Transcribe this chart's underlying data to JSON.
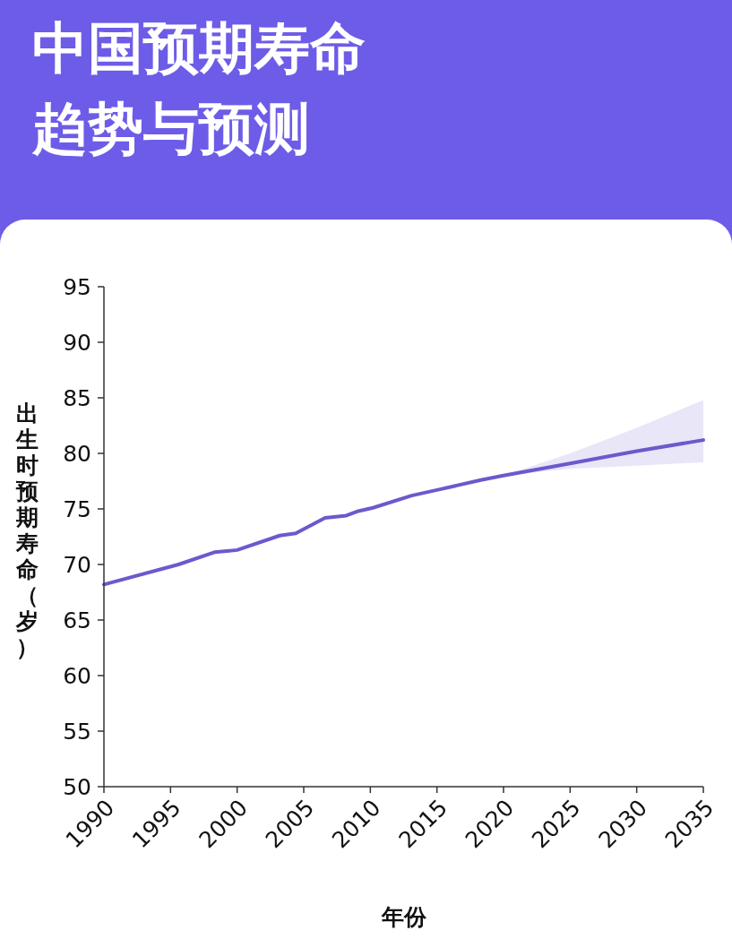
{
  "chart_data": {
    "type": "line",
    "title": "中国预期寿命趋势与预测",
    "xlabel": "年份",
    "ylabel": "出生时预期寿命（岁）",
    "x": [
      1990,
      1995.6,
      1998.3,
      2000,
      2003.2,
      2004.4,
      2006.6,
      2008.2,
      2009.1,
      2010.2,
      2013.1,
      2015,
      2018.3,
      2020,
      2025,
      2030,
      2035
    ],
    "series": [
      {
        "color": "#6a5acd",
        "values": [
          68.2,
          70.0,
          71.1,
          71.3,
          72.6,
          72.8,
          74.2,
          74.4,
          74.8,
          75.1,
          76.2,
          76.7,
          77.6,
          78.0,
          79.1,
          80.2,
          81.2
        ],
        "lower": [
          null,
          null,
          null,
          null,
          null,
          null,
          null,
          null,
          null,
          null,
          null,
          null,
          null,
          78.0,
          78.6,
          78.9,
          79.2
        ],
        "upper": [
          null,
          null,
          null,
          null,
          null,
          null,
          null,
          null,
          null,
          null,
          null,
          null,
          null,
          78.0,
          80.0,
          82.3,
          84.8
        ]
      }
    ],
    "xlim": [
      1990,
      2035
    ],
    "ylim": [
      50,
      95
    ],
    "xticks": [
      1990,
      1995,
      2000,
      2005,
      2010,
      2015,
      2020,
      2025,
      2030,
      2035
    ],
    "yticks": [
      50,
      55,
      60,
      65,
      70,
      75,
      80,
      85,
      90,
      95
    ]
  }
}
